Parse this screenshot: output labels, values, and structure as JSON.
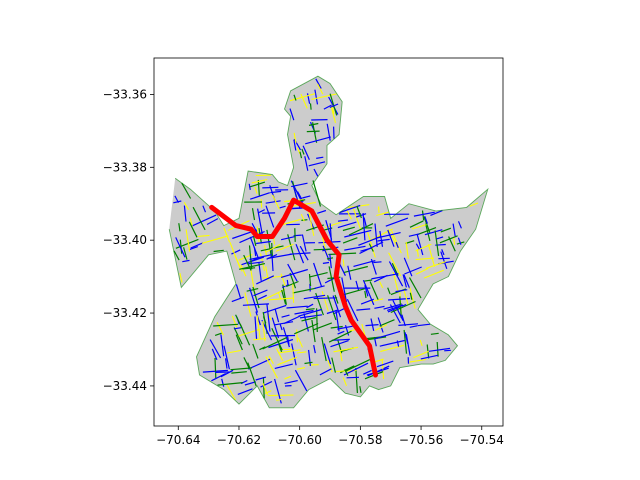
{
  "chart_data": {
    "type": "map",
    "title": "",
    "xlabel": "",
    "ylabel": "",
    "xlim": [
      -70.648,
      -70.533
    ],
    "ylim": [
      -33.451,
      -33.35
    ],
    "x_ticks": [
      {
        "value": -70.64,
        "label": "−70.64"
      },
      {
        "value": -70.62,
        "label": "−70.62"
      },
      {
        "value": -70.6,
        "label": "−70.60"
      },
      {
        "value": -70.58,
        "label": "−70.58"
      },
      {
        "value": -70.56,
        "label": "−70.56"
      },
      {
        "value": -70.54,
        "label": "−70.54"
      }
    ],
    "y_ticks": [
      {
        "value": -33.36,
        "label": "−33.36"
      },
      {
        "value": -33.38,
        "label": "−33.38"
      },
      {
        "value": -33.4,
        "label": "−33.40"
      },
      {
        "value": -33.42,
        "label": "−33.42"
      },
      {
        "value": -33.44,
        "label": "−33.44"
      }
    ],
    "grid": false,
    "legend": "none",
    "colors": {
      "land": "#cccccc",
      "road_primary": "#0000ff",
      "road_secondary": "#008000",
      "road_tertiary": "#ffff00",
      "route": "#ff0000"
    },
    "area_polygon": [
      [
        -70.641,
        -33.383
      ],
      [
        -70.636,
        -33.386
      ],
      [
        -70.628,
        -33.392
      ],
      [
        -70.625,
        -33.396
      ],
      [
        -70.62,
        -33.394
      ],
      [
        -70.617,
        -33.381
      ],
      [
        -70.609,
        -33.382
      ],
      [
        -70.607,
        -33.384
      ],
      [
        -70.604,
        -33.385
      ],
      [
        -70.602,
        -33.38
      ],
      [
        -70.604,
        -33.371
      ],
      [
        -70.603,
        -33.366
      ],
      [
        -70.605,
        -33.364
      ],
      [
        -70.603,
        -33.359
      ],
      [
        -70.594,
        -33.355
      ],
      [
        -70.59,
        -33.357
      ],
      [
        -70.586,
        -33.362
      ],
      [
        -70.587,
        -33.371
      ],
      [
        -70.591,
        -33.374
      ],
      [
        -70.591,
        -33.379
      ],
      [
        -70.596,
        -33.385
      ],
      [
        -70.593,
        -33.39
      ],
      [
        -70.588,
        -33.393
      ],
      [
        -70.579,
        -33.388
      ],
      [
        -70.572,
        -33.388
      ],
      [
        -70.57,
        -33.394
      ],
      [
        -70.564,
        -33.39
      ],
      [
        -70.555,
        -33.392
      ],
      [
        -70.545,
        -33.391
      ],
      [
        -70.538,
        -33.386
      ],
      [
        -70.542,
        -33.397
      ],
      [
        -70.547,
        -33.403
      ],
      [
        -70.551,
        -33.41
      ],
      [
        -70.556,
        -33.412
      ],
      [
        -70.561,
        -33.419
      ],
      [
        -70.557,
        -33.423
      ],
      [
        -70.551,
        -33.426
      ],
      [
        -70.548,
        -33.429
      ],
      [
        -70.552,
        -33.433
      ],
      [
        -70.556,
        -33.434
      ],
      [
        -70.56,
        -33.434
      ],
      [
        -70.567,
        -33.435
      ],
      [
        -70.57,
        -33.44
      ],
      [
        -70.574,
        -33.441
      ],
      [
        -70.577,
        -33.44
      ],
      [
        -70.58,
        -33.443
      ],
      [
        -70.585,
        -33.442
      ],
      [
        -70.59,
        -33.438
      ],
      [
        -70.597,
        -33.441
      ],
      [
        -70.602,
        -33.446
      ],
      [
        -70.61,
        -33.446
      ],
      [
        -70.614,
        -33.44
      ],
      [
        -70.62,
        -33.445
      ],
      [
        -70.625,
        -33.441
      ],
      [
        -70.633,
        -33.437
      ],
      [
        -70.634,
        -33.432
      ],
      [
        -70.628,
        -33.421
      ],
      [
        -70.621,
        -33.412
      ],
      [
        -70.624,
        -33.403
      ],
      [
        -70.63,
        -33.404
      ],
      [
        -70.639,
        -33.413
      ],
      [
        -70.643,
        -33.397
      ]
    ],
    "route_points": [
      [
        -70.629,
        -33.391
      ],
      [
        -70.621,
        -33.396
      ],
      [
        -70.616,
        -33.397
      ],
      [
        -70.614,
        -33.399
      ],
      [
        -70.609,
        -33.399
      ],
      [
        -70.605,
        -33.394
      ],
      [
        -70.602,
        -33.389
      ],
      [
        -70.596,
        -33.392
      ],
      [
        -70.591,
        -33.4
      ],
      [
        -70.587,
        -33.404
      ],
      [
        -70.588,
        -33.41
      ],
      [
        -70.585,
        -33.418
      ],
      [
        -70.583,
        -33.422
      ],
      [
        -70.577,
        -33.429
      ],
      [
        -70.575,
        -33.437
      ]
    ]
  }
}
